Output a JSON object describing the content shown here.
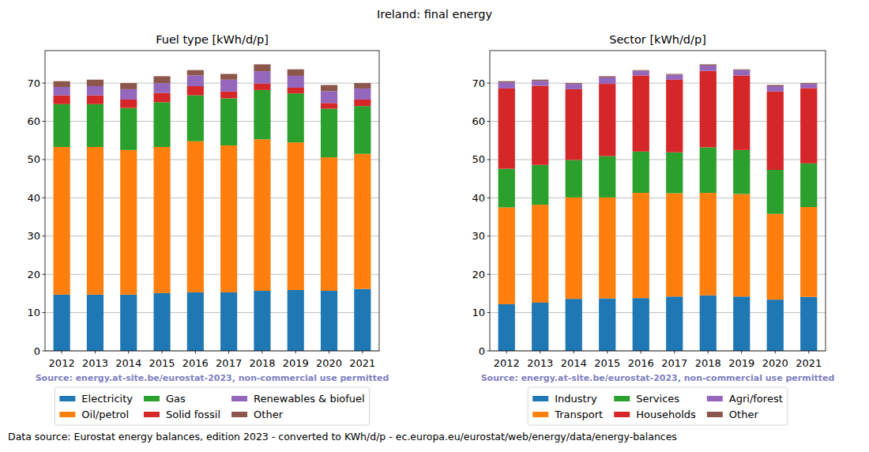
{
  "title": "Ireland: final energy",
  "footer": "Data source: Eurostat energy balances, edition 2023 - converted to KWh/d/p - ec.europa.eu/eurostat/web/energy/data/energy-balances",
  "chart_data": [
    {
      "type": "bar",
      "title": "Fuel type [kWh/d/p]",
      "annotation": "Source: energy.at-site.be/eurostat-2023, non-commercial use permitted",
      "categories": [
        "2012",
        "2013",
        "2014",
        "2015",
        "2016",
        "2017",
        "2018",
        "2019",
        "2020",
        "2021"
      ],
      "series": [
        {
          "name": "Electricity",
          "color": "#1f77b4",
          "values": [
            14.7,
            14.7,
            14.7,
            15.1,
            15.3,
            15.3,
            15.7,
            15.9,
            15.7,
            16.2
          ]
        },
        {
          "name": "Oil/petrol",
          "color": "#ff7f0e",
          "values": [
            38.6,
            38.6,
            37.8,
            38.2,
            39.5,
            38.4,
            39.6,
            38.6,
            34.9,
            35.3
          ]
        },
        {
          "name": "Gas",
          "color": "#2ca02c",
          "values": [
            11.2,
            11.2,
            11.0,
            11.7,
            12.0,
            12.3,
            12.9,
            12.8,
            12.7,
            12.5
          ]
        },
        {
          "name": "Solid fossil",
          "color": "#d62728",
          "values": [
            2.3,
            2.3,
            2.2,
            2.4,
            2.4,
            1.8,
            1.7,
            1.5,
            1.5,
            1.7
          ]
        },
        {
          "name": "Renewables & biofuel",
          "color": "#9467bd",
          "values": [
            2.2,
            2.4,
            2.7,
            2.6,
            2.8,
            3.1,
            3.2,
            3.1,
            3.1,
            2.9
          ]
        },
        {
          "name": "Other",
          "color": "#8c564b",
          "values": [
            1.5,
            1.7,
            1.6,
            1.8,
            1.4,
            1.5,
            1.8,
            1.7,
            1.6,
            1.4
          ]
        }
      ],
      "stacked": true,
      "grid": true,
      "legend": "bottom",
      "ylim": [
        0,
        78.5
      ],
      "yticks": [
        0,
        10,
        20,
        30,
        40,
        50,
        60,
        70
      ]
    },
    {
      "type": "bar",
      "title": "Sector [kWh/d/p]",
      "annotation": "Source: energy.at-site.be/eurostat-2023, non-commercial use permitted",
      "categories": [
        "2012",
        "2013",
        "2014",
        "2015",
        "2016",
        "2017",
        "2018",
        "2019",
        "2020",
        "2021"
      ],
      "series": [
        {
          "name": "Industry",
          "color": "#1f77b4",
          "values": [
            12.2,
            12.6,
            13.6,
            13.7,
            13.8,
            14.2,
            14.5,
            14.2,
            13.4,
            14.1
          ]
        },
        {
          "name": "Transport",
          "color": "#ff7f0e",
          "values": [
            25.3,
            25.6,
            26.5,
            26.4,
            27.5,
            27.0,
            26.8,
            26.8,
            22.4,
            23.5
          ]
        },
        {
          "name": "Services",
          "color": "#2ca02c",
          "values": [
            10.1,
            10.4,
            9.8,
            10.8,
            10.8,
            10.7,
            11.9,
            11.5,
            11.5,
            11.4
          ]
        },
        {
          "name": "Households",
          "color": "#d62728",
          "values": [
            21.0,
            20.7,
            18.5,
            18.9,
            19.9,
            19.0,
            20.0,
            19.5,
            20.5,
            19.7
          ]
        },
        {
          "name": "Agri/forest",
          "color": "#9467bd",
          "values": [
            1.6,
            1.3,
            1.4,
            1.7,
            1.2,
            1.3,
            1.4,
            1.4,
            1.4,
            1.1
          ]
        },
        {
          "name": "Other",
          "color": "#8c564b",
          "values": [
            0.3,
            0.3,
            0.2,
            0.3,
            0.2,
            0.2,
            0.3,
            0.2,
            0.3,
            0.2
          ]
        }
      ],
      "stacked": true,
      "grid": true,
      "legend": "bottom",
      "ylim": [
        0,
        78.5
      ],
      "yticks": [
        0,
        10,
        20,
        30,
        40,
        50,
        60,
        70
      ]
    }
  ]
}
